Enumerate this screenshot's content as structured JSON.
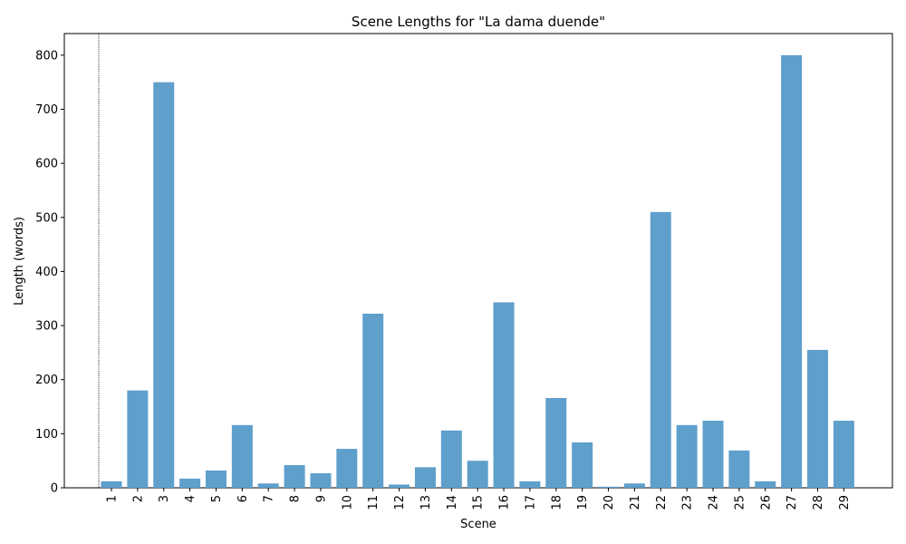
{
  "chart_data": {
    "type": "bar",
    "title": "Scene Lengths for \"La dama duende\"",
    "xlabel": "Scene",
    "ylabel": "Length (words)",
    "categories": [
      "1",
      "2",
      "3",
      "4",
      "5",
      "6",
      "7",
      "8",
      "9",
      "10",
      "11",
      "12",
      "13",
      "14",
      "15",
      "16",
      "17",
      "18",
      "19",
      "20",
      "21",
      "22",
      "23",
      "24",
      "25",
      "26",
      "27",
      "28",
      "29"
    ],
    "values": [
      12,
      180,
      750,
      17,
      32,
      116,
      8,
      42,
      27,
      72,
      322,
      6,
      38,
      106,
      50,
      343,
      12,
      166,
      84,
      2,
      8,
      510,
      116,
      124,
      69,
      12,
      800,
      255,
      124
    ],
    "yticks": [
      0,
      100,
      200,
      300,
      400,
      500,
      600,
      700,
      800
    ],
    "ylim": [
      0,
      840
    ],
    "bar_color": "#5f9fcc",
    "grid": false,
    "reference_line": {
      "style": "dotted",
      "color": "#000000"
    }
  }
}
